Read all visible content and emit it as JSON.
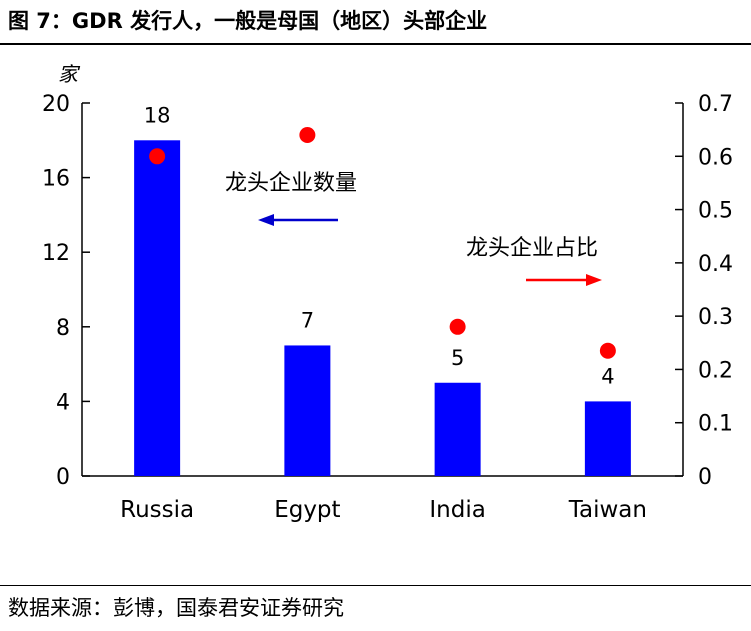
{
  "header": {
    "title": "图 7：GDR 发行人，一般是母国（地区）头部企业"
  },
  "footer": {
    "source": "数据来源：彭博，国泰君安证券研究"
  },
  "chart_data": {
    "type": "bar",
    "categories": [
      "Russia",
      "Egypt",
      "India",
      "Taiwan"
    ],
    "series": [
      {
        "name": "龙头企业数量",
        "kind": "bar",
        "axis": "left",
        "values": [
          18,
          7,
          5,
          4
        ],
        "data_labels": [
          "18",
          "7",
          "5",
          "4"
        ],
        "color": "#0000FF"
      },
      {
        "name": "龙头企业占比",
        "kind": "scatter",
        "axis": "right",
        "values": [
          0.6,
          0.64,
          0.28,
          0.235
        ],
        "color": "#FF0000"
      }
    ],
    "y_left": {
      "unit_label": "家",
      "min": 0,
      "max": 20,
      "ticks": [
        0,
        4,
        8,
        12,
        16,
        20
      ],
      "tick_labels": [
        "0",
        "4",
        "8",
        "12",
        "16",
        "20"
      ]
    },
    "y_right": {
      "min": 0,
      "max": 0.7,
      "ticks": [
        0,
        0.1,
        0.2,
        0.3,
        0.4,
        0.5,
        0.6,
        0.7
      ],
      "tick_labels": [
        "0",
        "0.1",
        "0.2",
        "0.3",
        "0.4",
        "0.5",
        "0.6",
        "0.7"
      ]
    },
    "annotations": [
      {
        "text": "龙头企业数量",
        "arrow": "left",
        "arrow_color": "#0000CC"
      },
      {
        "text": "龙头企业占比",
        "arrow": "right",
        "arrow_color": "#FF0000"
      }
    ],
    "grid": false,
    "legend": "none"
  }
}
